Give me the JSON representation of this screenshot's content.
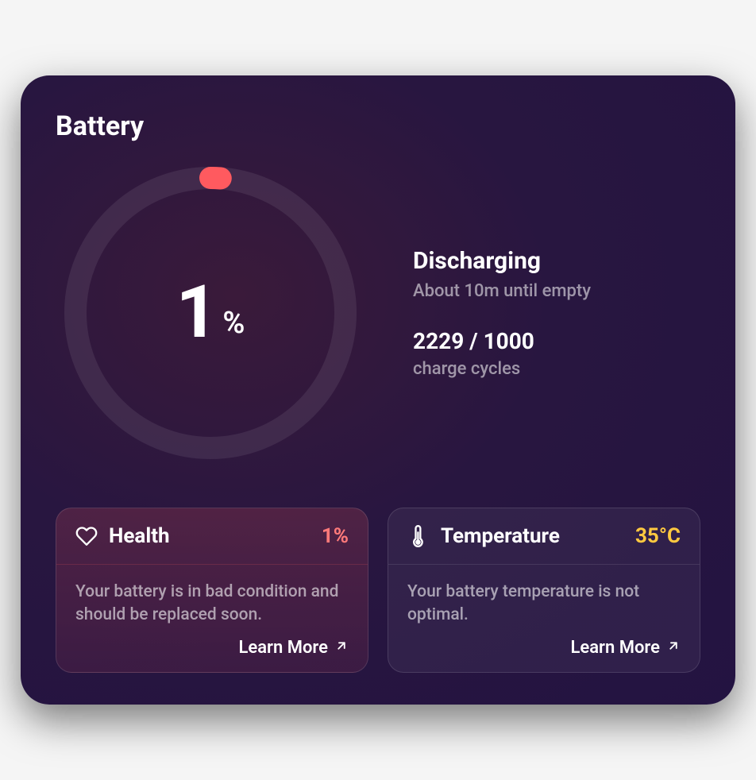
{
  "title": "Battery",
  "gauge": {
    "percent": 1,
    "percent_label": "1",
    "symbol": "%",
    "track_color": "rgba(255,255,255,0.08)",
    "fill_color": "#ff5a5f",
    "stroke_width": 28,
    "radius": 170
  },
  "status": {
    "title": "Discharging",
    "subtitle": "About 10m until empty"
  },
  "cycles": {
    "value": "2229 / 1000",
    "label": "charge cycles"
  },
  "cards": {
    "health": {
      "title": "Health",
      "value": "1%",
      "value_color": "#ff7a7a",
      "text": "Your battery is in bad condition and should be replaced soon.",
      "learn_more": "Learn More"
    },
    "temperature": {
      "title": "Temperature",
      "value": "35°C",
      "value_color": "#ffc940",
      "text": "Your battery temperature is not optimal.",
      "learn_more": "Learn More"
    }
  },
  "colors": {
    "bg_gradient_inner": "#3a1a3a",
    "bg_gradient_outer": "#231341",
    "text_primary": "#ffffff",
    "text_muted": "rgba(255,255,255,0.55)"
  }
}
